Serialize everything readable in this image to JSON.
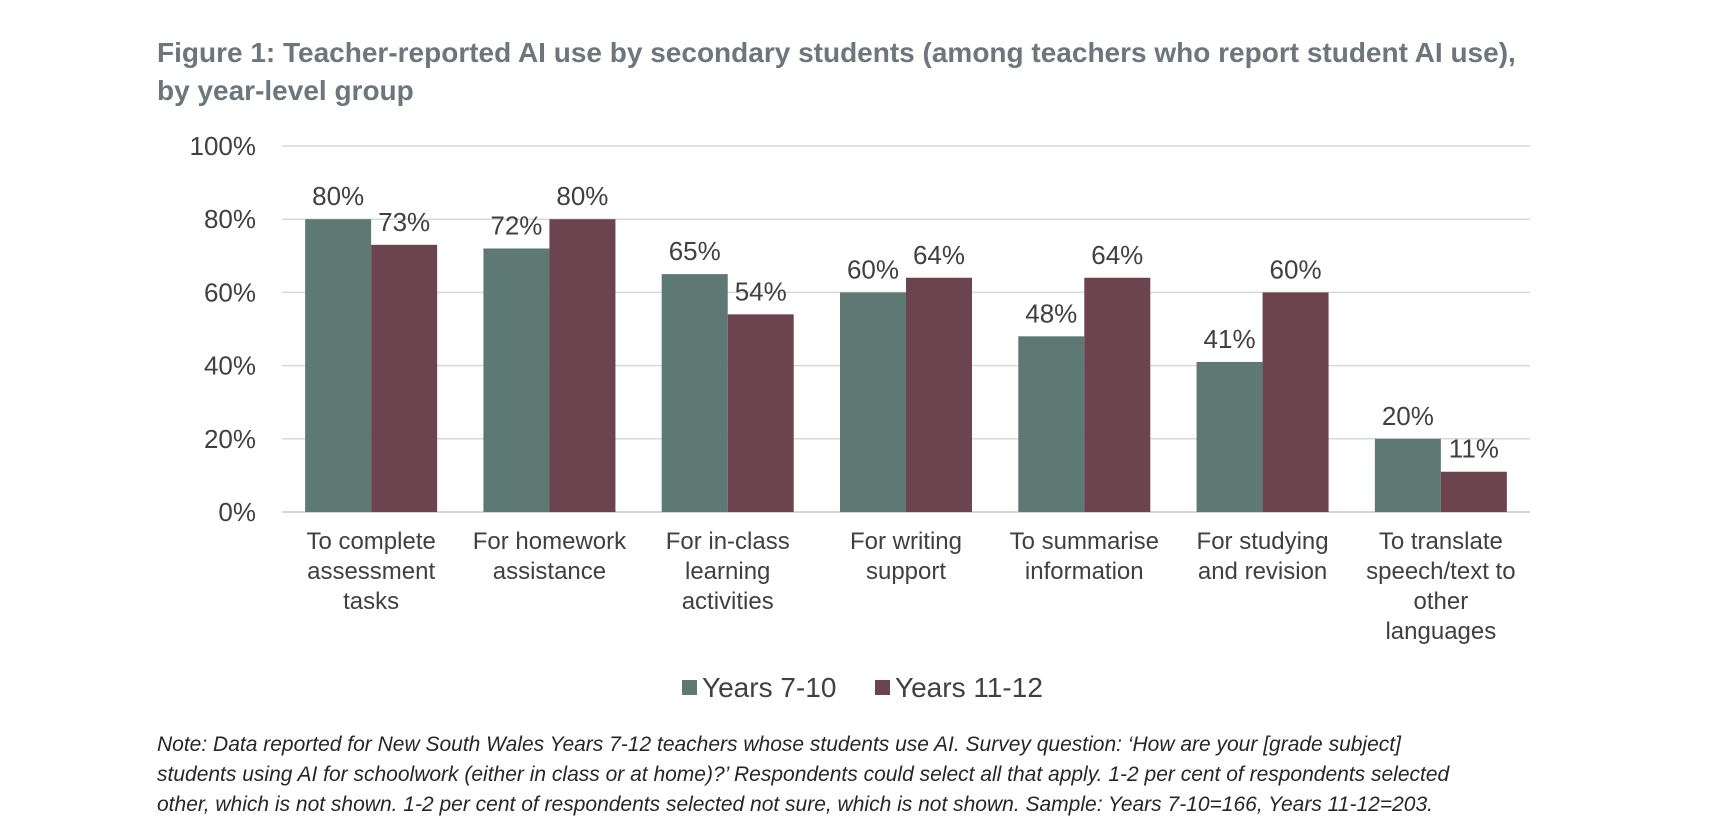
{
  "title_lines": [
    "Figure 1: Teacher-reported AI use by secondary students (among teachers who report student AI use),",
    "by year-level group"
  ],
  "note_lines": [
    "Note: Data reported for New South Wales Years 7-12 teachers whose students use AI. Survey question: ‘How are your [grade subject]",
    "students using AI for schoolwork (either in class or at home)?’ Respondents could select all that apply. 1-2 per cent of respondents selected",
    "other, which is not shown. 1-2 per cent of respondents selected not sure, which is not shown. Sample: Years 7-10=166, Years 11-12=203."
  ],
  "chart_data": {
    "type": "bar",
    "title": "Figure 1: Teacher-reported AI use by secondary students (among teachers who report student AI use), by year-level group",
    "xlabel": "",
    "ylabel": "",
    "ylim": [
      0,
      100
    ],
    "yticks": [
      0,
      20,
      40,
      60,
      80,
      100
    ],
    "ytick_labels": [
      "0%",
      "20%",
      "40%",
      "60%",
      "80%",
      "100%"
    ],
    "grid": true,
    "legend": "bottom",
    "categories": [
      [
        "To complete",
        "assessment",
        "tasks"
      ],
      [
        "For homework",
        "assistance"
      ],
      [
        "For in-class",
        "learning",
        "activities"
      ],
      [
        "For writing",
        "support"
      ],
      [
        "To summarise",
        "information"
      ],
      [
        "For studying",
        "and revision"
      ],
      [
        "To translate",
        "speech/text to",
        "other",
        "languages"
      ]
    ],
    "series": [
      {
        "name": "Years 7-10",
        "color": "#5e7873",
        "values": [
          80,
          72,
          65,
          60,
          48,
          41,
          20
        ],
        "labels": [
          "80%",
          "72%",
          "65%",
          "60%",
          "48%",
          "41%",
          "20%"
        ]
      },
      {
        "name": "Years 11-12",
        "color": "#6b4450",
        "values": [
          73,
          80,
          54,
          64,
          64,
          60,
          11
        ],
        "labels": [
          "73%",
          "80%",
          "54%",
          "64%",
          "64%",
          "60%",
          "11%"
        ]
      }
    ]
  }
}
